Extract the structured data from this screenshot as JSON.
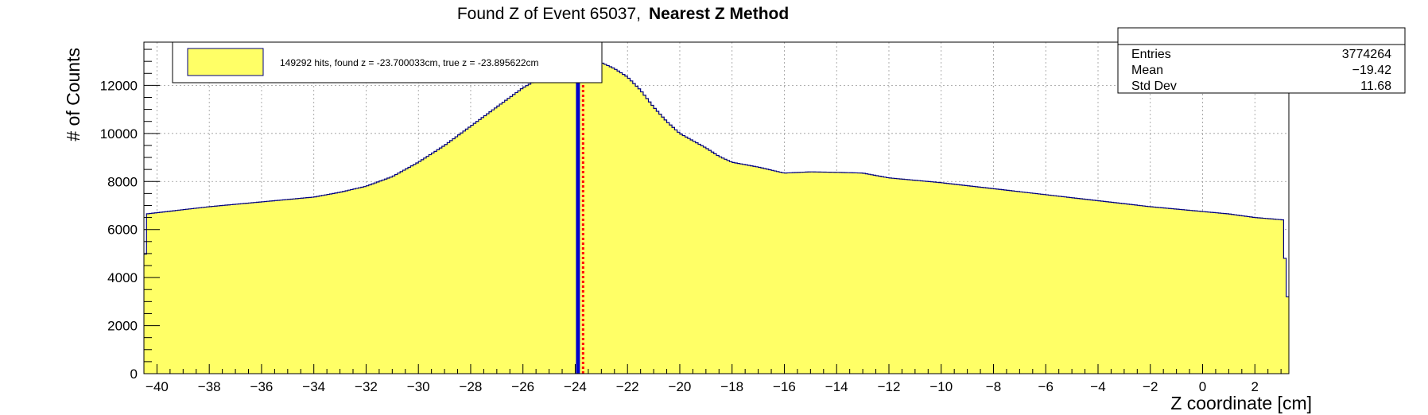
{
  "chart_data": {
    "type": "histogram",
    "title_part1": "Found Z of Event 65037,",
    "title_part2": "Nearest Z Method",
    "xlabel": "Z coordinate [cm]",
    "ylabel": "# of Counts",
    "xlim": [
      -40.5,
      3.3
    ],
    "ylim": [
      0,
      13800
    ],
    "x_ticks": [
      -40,
      -38,
      -36,
      -34,
      -32,
      -30,
      -28,
      -26,
      -24,
      -22,
      -20,
      -18,
      -16,
      -14,
      -12,
      -10,
      -8,
      -6,
      -4,
      -2,
      0,
      2
    ],
    "x_tick_labels": [
      "−40",
      "−38",
      "−36",
      "−34",
      "−32",
      "−30",
      "−28",
      "−26",
      "−24",
      "−22",
      "−20",
      "−18",
      "−16",
      "−14",
      "−12",
      "−10",
      "−8",
      "−6",
      "−4",
      "−2",
      "0",
      "2"
    ],
    "y_ticks": [
      0,
      2000,
      4000,
      6000,
      8000,
      10000,
      12000
    ],
    "y_tick_labels": [
      "0",
      "2000",
      "4000",
      "6000",
      "8000",
      "10000",
      "12000"
    ],
    "grid": true,
    "fill_color": "#ffff66",
    "line_color": "#00007f",
    "bin_width": 0.1,
    "profile": [
      [
        -40.5,
        3300
      ],
      [
        -40.4,
        6650
      ],
      [
        -40,
        6700
      ],
      [
        -38,
        6950
      ],
      [
        -36,
        7150
      ],
      [
        -34,
        7350
      ],
      [
        -33,
        7550
      ],
      [
        -32,
        7800
      ],
      [
        -31,
        8200
      ],
      [
        -30,
        8800
      ],
      [
        -29,
        9500
      ],
      [
        -28,
        10300
      ],
      [
        -27,
        11100
      ],
      [
        -26,
        11900
      ],
      [
        -25,
        12500
      ],
      [
        -24.3,
        12900
      ],
      [
        -23.7,
        13050
      ],
      [
        -23,
        12950
      ],
      [
        -22.5,
        12700
      ],
      [
        -22,
        12350
      ],
      [
        -21.5,
        11800
      ],
      [
        -21,
        11100
      ],
      [
        -20.5,
        10500
      ],
      [
        -20,
        10000
      ],
      [
        -19.5,
        9700
      ],
      [
        -19,
        9400
      ],
      [
        -18.5,
        9050
      ],
      [
        -18,
        8800
      ],
      [
        -17,
        8600
      ],
      [
        -16,
        8350
      ],
      [
        -15,
        8400
      ],
      [
        -14,
        8380
      ],
      [
        -13,
        8350
      ],
      [
        -12,
        8150
      ],
      [
        -10,
        7950
      ],
      [
        -8,
        7700
      ],
      [
        -6,
        7450
      ],
      [
        -4,
        7200
      ],
      [
        -2,
        6950
      ],
      [
        0,
        6750
      ],
      [
        1,
        6650
      ],
      [
        2,
        6500
      ],
      [
        3.1,
        6400
      ],
      [
        3.2,
        3200
      ],
      [
        3.3,
        3200
      ]
    ],
    "found_z": -23.700033,
    "true_z": -23.895622,
    "found_z_color": "#ff0000",
    "true_z_color": "#0000cc",
    "legend_entry": "149292 hits, found z = -23.700033cm, true z = -23.895622cm",
    "legend_position": "top-left",
    "stats": {
      "position": "top-right",
      "rows": [
        {
          "label": "Entries",
          "value": "3774264"
        },
        {
          "label": "Mean",
          "value": "−19.42"
        },
        {
          "label": "Std Dev",
          "value": "11.68"
        }
      ]
    }
  }
}
